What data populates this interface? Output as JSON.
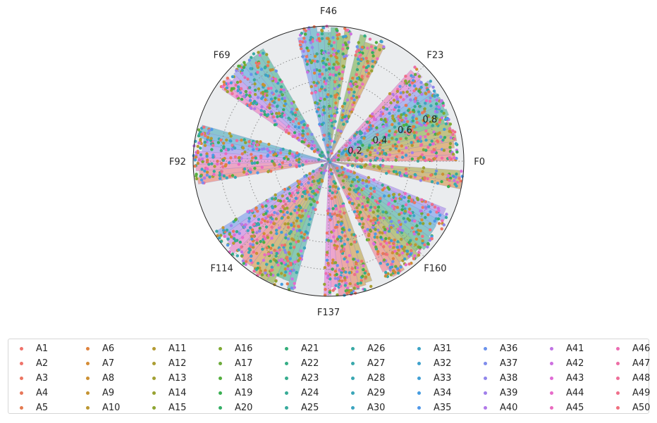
{
  "chart_data": {
    "type": "polar-scatter",
    "title": "",
    "theta_tick_labels": [
      "F0",
      "F23",
      "F46",
      "F69",
      "F92",
      "F114",
      "F137",
      "F160"
    ],
    "r_tick_labels": [
      "0.2",
      "0.4",
      "0.6",
      "0.8"
    ],
    "r_ticks": [
      0.2,
      0.4,
      0.6,
      0.8
    ],
    "r_range": [
      0,
      1
    ],
    "grid": true,
    "legend_placement": "bottom",
    "legend_columns": 10,
    "feature_count": 184,
    "series": [
      {
        "name": "A1",
        "color": "#f0716a"
      },
      {
        "name": "A2",
        "color": "#ef736a"
      },
      {
        "name": "A3",
        "color": "#ec7561"
      },
      {
        "name": "A4",
        "color": "#e8775a"
      },
      {
        "name": "A5",
        "color": "#e47a50"
      },
      {
        "name": "A6",
        "color": "#df823c"
      },
      {
        "name": "A7",
        "color": "#d58c35"
      },
      {
        "name": "A8",
        "color": "#cc9032"
      },
      {
        "name": "A9",
        "color": "#c49332"
      },
      {
        "name": "A10",
        "color": "#bb9732"
      },
      {
        "name": "A11",
        "color": "#b49a32"
      },
      {
        "name": "A12",
        "color": "#ab9d32"
      },
      {
        "name": "A13",
        "color": "#a2a032"
      },
      {
        "name": "A14",
        "color": "#98a232"
      },
      {
        "name": "A15",
        "color": "#8ea532"
      },
      {
        "name": "A16",
        "color": "#7fa932"
      },
      {
        "name": "A17",
        "color": "#6dab3c"
      },
      {
        "name": "A18",
        "color": "#53ae3d"
      },
      {
        "name": "A19",
        "color": "#3aaf52"
      },
      {
        "name": "A20",
        "color": "#33ae66"
      },
      {
        "name": "A21",
        "color": "#34ae7a"
      },
      {
        "name": "A22",
        "color": "#35ad85"
      },
      {
        "name": "A23",
        "color": "#36ac8e"
      },
      {
        "name": "A24",
        "color": "#37ab96"
      },
      {
        "name": "A25",
        "color": "#37aa9d"
      },
      {
        "name": "A26",
        "color": "#38a9a4"
      },
      {
        "name": "A27",
        "color": "#39a8ab"
      },
      {
        "name": "A28",
        "color": "#3aa7b1"
      },
      {
        "name": "A29",
        "color": "#3ba6b8"
      },
      {
        "name": "A30",
        "color": "#3ca4bf"
      },
      {
        "name": "A31",
        "color": "#3ca3c5"
      },
      {
        "name": "A32",
        "color": "#3ea1cc"
      },
      {
        "name": "A33",
        "color": "#409fd4"
      },
      {
        "name": "A34",
        "color": "#459ce0"
      },
      {
        "name": "A35",
        "color": "#5098e9"
      },
      {
        "name": "A36",
        "color": "#6a92ec"
      },
      {
        "name": "A37",
        "color": "#7f8cec"
      },
      {
        "name": "A38",
        "color": "#9086eb"
      },
      {
        "name": "A39",
        "color": "#a07fea"
      },
      {
        "name": "A40",
        "color": "#b178e9"
      },
      {
        "name": "A41",
        "color": "#c073e4"
      },
      {
        "name": "A42",
        "color": "#cd6fe0"
      },
      {
        "name": "A43",
        "color": "#e06bd6"
      },
      {
        "name": "A44",
        "color": "#e76bca"
      },
      {
        "name": "A45",
        "color": "#ea6bbf"
      },
      {
        "name": "A46",
        "color": "#ec6cb2"
      },
      {
        "name": "A47",
        "color": "#ed6da5"
      },
      {
        "name": "A48",
        "color": "#ee6e98"
      },
      {
        "name": "A49",
        "color": "#ef6f8b"
      },
      {
        "name": "A50",
        "color": "#f0707e"
      }
    ],
    "feature_groups": [
      {
        "theta_start_deg": 0,
        "theta_end_deg": 48,
        "max_r": 0.96
      },
      {
        "theta_start_deg": 64,
        "theta_end_deg": 76,
        "max_r": 0.97
      },
      {
        "theta_start_deg": 80,
        "theta_end_deg": 104,
        "max_r": 1.0
      },
      {
        "theta_start_deg": 120,
        "theta_end_deg": 146,
        "max_r": 0.97
      },
      {
        "theta_start_deg": 164,
        "theta_end_deg": 190,
        "max_r": 1.0
      },
      {
        "theta_start_deg": 212,
        "theta_end_deg": 255,
        "max_r": 1.0
      },
      {
        "theta_start_deg": 268,
        "theta_end_deg": 290,
        "max_r": 1.0
      },
      {
        "theta_start_deg": 296,
        "theta_end_deg": 338,
        "max_r": 0.98
      },
      {
        "theta_start_deg": 348,
        "theta_end_deg": 356,
        "max_r": 1.0
      }
    ]
  }
}
